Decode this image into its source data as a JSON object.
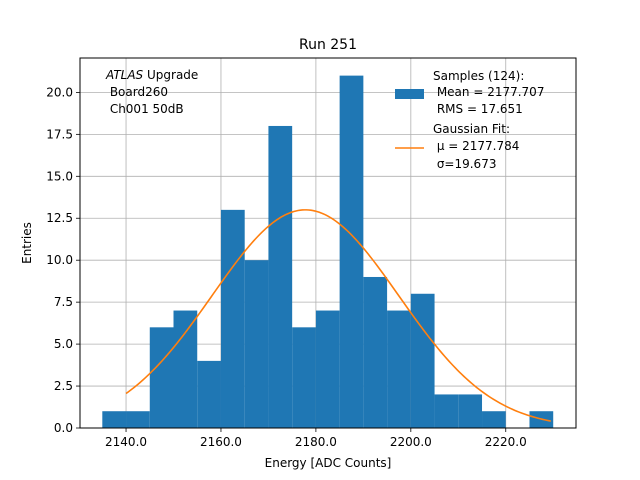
{
  "chart_data": {
    "type": "bar",
    "title": "Run 251",
    "xlabel": "Energy [ADC Counts]",
    "ylabel": "Entries",
    "xlim": [
      2130.3,
      2234.8
    ],
    "ylim": [
      0,
      22.05
    ],
    "grid": true,
    "x_ticks": [
      2140.0,
      2160.0,
      2180.0,
      2200.0,
      2220.0
    ],
    "x_tick_labels": [
      "2140.0",
      "2160.0",
      "2180.0",
      "2200.0",
      "2220.0"
    ],
    "y_ticks": [
      0.0,
      2.5,
      5.0,
      7.5,
      10.0,
      12.5,
      15.0,
      17.5,
      20.0
    ],
    "y_tick_labels": [
      "0.0",
      "2.5",
      "5.0",
      "7.5",
      "10.0",
      "12.5",
      "15.0",
      "17.5",
      "20.0"
    ],
    "histogram": {
      "color": "#1f77b4",
      "bins": [
        {
          "x0": 2135.0,
          "x1": 2140.0,
          "count": 1
        },
        {
          "x0": 2140.0,
          "x1": 2145.0,
          "count": 1
        },
        {
          "x0": 2145.0,
          "x1": 2150.0,
          "count": 6
        },
        {
          "x0": 2150.0,
          "x1": 2155.0,
          "count": 7
        },
        {
          "x0": 2155.0,
          "x1": 2160.0,
          "count": 4
        },
        {
          "x0": 2160.0,
          "x1": 2165.0,
          "count": 13
        },
        {
          "x0": 2165.0,
          "x1": 2170.0,
          "count": 10
        },
        {
          "x0": 2170.0,
          "x1": 2175.0,
          "count": 18
        },
        {
          "x0": 2175.0,
          "x1": 2180.0,
          "count": 6
        },
        {
          "x0": 2180.0,
          "x1": 2185.0,
          "count": 7
        },
        {
          "x0": 2185.0,
          "x1": 2190.0,
          "count": 21
        },
        {
          "x0": 2190.0,
          "x1": 2195.0,
          "count": 9
        },
        {
          "x0": 2195.0,
          "x1": 2200.0,
          "count": 7
        },
        {
          "x0": 2200.0,
          "x1": 2205.0,
          "count": 8
        },
        {
          "x0": 2205.0,
          "x1": 2210.0,
          "count": 2
        },
        {
          "x0": 2210.0,
          "x1": 2215.0,
          "count": 2
        },
        {
          "x0": 2215.0,
          "x1": 2220.0,
          "count": 1
        },
        {
          "x0": 2220.0,
          "x1": 2225.0,
          "count": 0
        },
        {
          "x0": 2225.0,
          "x1": 2230.0,
          "count": 1
        }
      ]
    },
    "fit": {
      "type": "gaussian",
      "color": "#ff7f0e",
      "mu": 2177.784,
      "sigma": 19.673,
      "amplitude": 13.0,
      "x_range": [
        2140.0,
        2229.5
      ]
    },
    "legend": {
      "placement": "top-right",
      "entries": [
        {
          "kind": "patch",
          "lines": [
            "Samples (124):",
            " Mean = 2177.707",
            " RMS = 17.651"
          ]
        },
        {
          "kind": "line",
          "lines": [
            "Gaussian Fit:",
            " μ = 2177.784",
            " σ=19.673"
          ]
        }
      ]
    },
    "annotation": {
      "placement": "top-left",
      "italic": "ATLAS",
      "rest": " Upgrade",
      "lines": [
        " Board260",
        " Ch001 50dB"
      ]
    }
  }
}
